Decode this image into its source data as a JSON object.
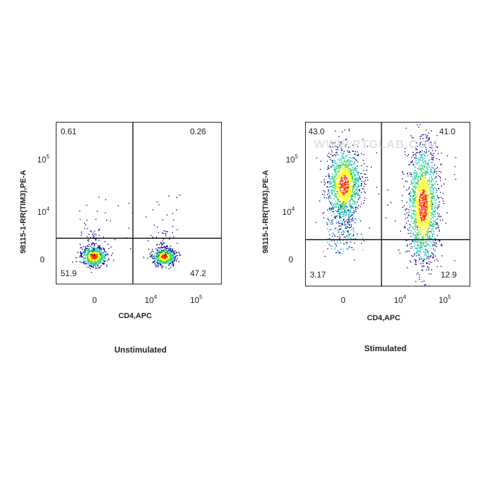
{
  "chart_data": [
    {
      "type": "scatter",
      "subtype": "flow-cytometry-density-dot-plot",
      "caption": "Unstimulated",
      "xlabel": "CD4,APC",
      "ylabel": "98115-1-RR(TIM3),PE-A",
      "x_scale": "biexponential",
      "y_scale": "biexponential",
      "x_ticks": [
        "0",
        "10^4",
        "10^5"
      ],
      "y_ticks": [
        "0",
        "10^4",
        "10^5"
      ],
      "quadrants": {
        "upper_left": "0.61",
        "upper_right": "0.26",
        "lower_left": "51.9",
        "lower_right": "47.2"
      },
      "populations": [
        {
          "name": "CD4-negative",
          "x_center": 0,
          "y_center": 0,
          "density": "high"
        },
        {
          "name": "CD4-positive",
          "x_center": 20000,
          "y_center": 0,
          "density": "high"
        }
      ]
    },
    {
      "type": "scatter",
      "subtype": "flow-cytometry-density-dot-plot",
      "caption": "Stimulated",
      "xlabel": "CD4,APC",
      "ylabel": "98115-1-RR(TIM3),PE-A",
      "x_scale": "biexponential",
      "y_scale": "biexponential",
      "x_ticks": [
        "0",
        "10^4",
        "10^5"
      ],
      "y_ticks": [
        "0",
        "10^5",
        "10^4",
        "0"
      ],
      "quadrants": {
        "upper_left": "43.0",
        "upper_right": "41.0",
        "lower_left": "3.17",
        "lower_right": "12.9"
      },
      "populations": [
        {
          "name": "CD4-negative TIM3-high",
          "x_center": 0,
          "y_center": 50000,
          "density": "high"
        },
        {
          "name": "CD4-positive TIM3 spread",
          "x_center": 30000,
          "y_center": 10000,
          "density": "high"
        }
      ]
    }
  ],
  "watermark": "WWW.PTGLAB.COM",
  "colors": {
    "low": "#00008b",
    "mid": "#00c0c0",
    "high": "#ffff00",
    "peak": "#ff3000"
  }
}
